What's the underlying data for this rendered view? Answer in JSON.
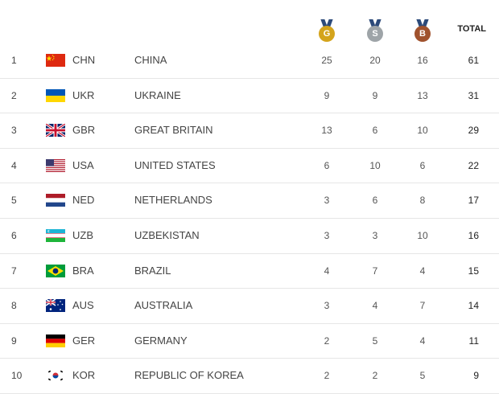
{
  "header": {
    "gold_letter": "G",
    "silver_letter": "S",
    "bronze_letter": "B",
    "total_label": "TOTAL",
    "colors": {
      "gold": "#d4a41c",
      "silver": "#9ea4a8",
      "bronze": "#a0522d",
      "ribbon": "#2c4a7a"
    }
  },
  "rows": [
    {
      "rank": "1",
      "code": "CHN",
      "country": "CHINA",
      "gold": "25",
      "silver": "20",
      "bronze": "16",
      "total": "61",
      "flag": "china-flag-icon"
    },
    {
      "rank": "2",
      "code": "UKR",
      "country": "UKRAINE",
      "gold": "9",
      "silver": "9",
      "bronze": "13",
      "total": "31",
      "flag": "ukraine-flag-icon"
    },
    {
      "rank": "3",
      "code": "GBR",
      "country": "GREAT BRITAIN",
      "gold": "13",
      "silver": "6",
      "bronze": "10",
      "total": "29",
      "flag": "great-britain-flag-icon"
    },
    {
      "rank": "4",
      "code": "USA",
      "country": "UNITED STATES",
      "gold": "6",
      "silver": "10",
      "bronze": "6",
      "total": "22",
      "flag": "usa-flag-icon"
    },
    {
      "rank": "5",
      "code": "NED",
      "country": "NETHERLANDS",
      "gold": "3",
      "silver": "6",
      "bronze": "8",
      "total": "17",
      "flag": "netherlands-flag-icon"
    },
    {
      "rank": "6",
      "code": "UZB",
      "country": "UZBEKISTAN",
      "gold": "3",
      "silver": "3",
      "bronze": "10",
      "total": "16",
      "flag": "uzbekistan-flag-icon"
    },
    {
      "rank": "7",
      "code": "BRA",
      "country": "BRAZIL",
      "gold": "4",
      "silver": "7",
      "bronze": "4",
      "total": "15",
      "flag": "brazil-flag-icon"
    },
    {
      "rank": "8",
      "code": "AUS",
      "country": "AUSTRALIA",
      "gold": "3",
      "silver": "4",
      "bronze": "7",
      "total": "14",
      "flag": "australia-flag-icon"
    },
    {
      "rank": "9",
      "code": "GER",
      "country": "GERMANY",
      "gold": "2",
      "silver": "5",
      "bronze": "4",
      "total": "11",
      "flag": "germany-flag-icon"
    },
    {
      "rank": "10",
      "code": "KOR",
      "country": "REPUBLIC OF KOREA",
      "gold": "2",
      "silver": "2",
      "bronze": "5",
      "total": "9",
      "flag": "korea-flag-icon"
    }
  ]
}
